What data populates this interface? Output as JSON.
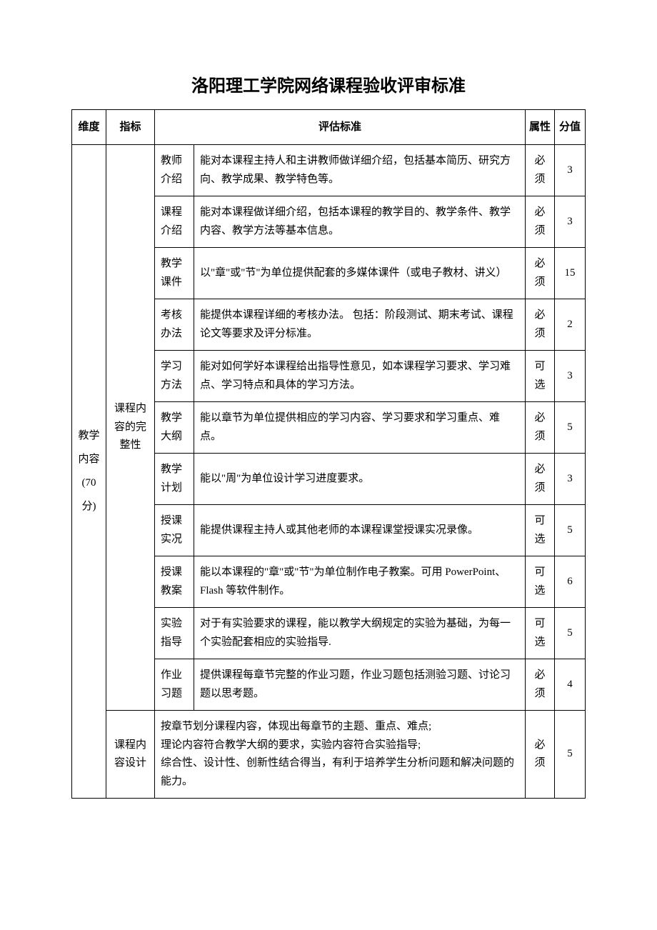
{
  "title": "洛阳理工学院网络课程验收评审标准",
  "headers": {
    "dimension": "维度",
    "indicator": "指标",
    "criteria": "评估标准",
    "attribute": "属性",
    "score": "分值"
  },
  "dimension": {
    "label": "教学内容 (70 分)"
  },
  "indicators": {
    "integrity": "课程内容的完整性",
    "design": "课程内容设计"
  },
  "rows": [
    {
      "sub": "教师介绍",
      "desc": "能对本课程主持人和主讲教师做详细介绍，包括基本简历、研究方向、教学成果、教学特色等。",
      "attr": "必须",
      "score": "3"
    },
    {
      "sub": "课程介绍",
      "desc": "能对本课程做详细介绍，包括本课程的教学目的、教学条件、教学内容、教学方法等基本信息。",
      "attr": "必须",
      "score": "3"
    },
    {
      "sub": "教学课件",
      "desc": "以\"章\"或\"节\"为单位提供配套的多媒体课件（或电子教材、讲义）",
      "attr": "必须",
      "score": "15"
    },
    {
      "sub": "考核办法",
      "desc": "能提供本课程详细的考核办法。 包括：阶段测试、期末考试、课程论文等要求及评分标准。",
      "attr": "必须",
      "score": "2"
    },
    {
      "sub": "学习方法",
      "desc": "能对如何学好本课程给出指导性意见，如本课程学习要求、学习难点、学习特点和具体的学习方法。",
      "attr": "可选",
      "score": "3"
    },
    {
      "sub": "教学大纲",
      "desc": "能以章节为单位提供相应的学习内容、学习要求和学习重点、难点。",
      "attr": "必须",
      "score": "5"
    },
    {
      "sub": "教学计划",
      "desc": "能以\"周\"为单位设计学习进度要求。",
      "attr": "必须",
      "score": "3"
    },
    {
      "sub": "授课实况",
      "desc": "能提供课程主持人或其他老师的本课程课堂授课实况录像。",
      "attr": "可选",
      "score": "5"
    },
    {
      "sub": "授课教案",
      "desc": "能以本课程的\"章\"或\"节\"为单位制作电子教案。可用 PowerPoint、Flash 等软件制作。",
      "attr": "可选",
      "score": "6"
    },
    {
      "sub": "实验指导",
      "desc": "对于有实验要求的课程，能以教学大纲规定的实验为基础，为每一个实验配套相应的实验指导.",
      "attr": "可选",
      "score": "5"
    },
    {
      "sub": "作业习题",
      "desc": "提供课程每章节完整的作业习题，作业习题包括测验习题、讨论习题以思考题。",
      "attr": "必须",
      "score": "4"
    }
  ],
  "design_row": {
    "desc": "按章节划分课程内容，体现出每章节的主题、重点、难点;\n理论内容符合教学大纲的要求，实验内容符合实验指导;\n综合性、设计性、创新性结合得当，有利于培养学生分析问题和解决问题的能力。",
    "attr": "必须",
    "score": "5"
  }
}
